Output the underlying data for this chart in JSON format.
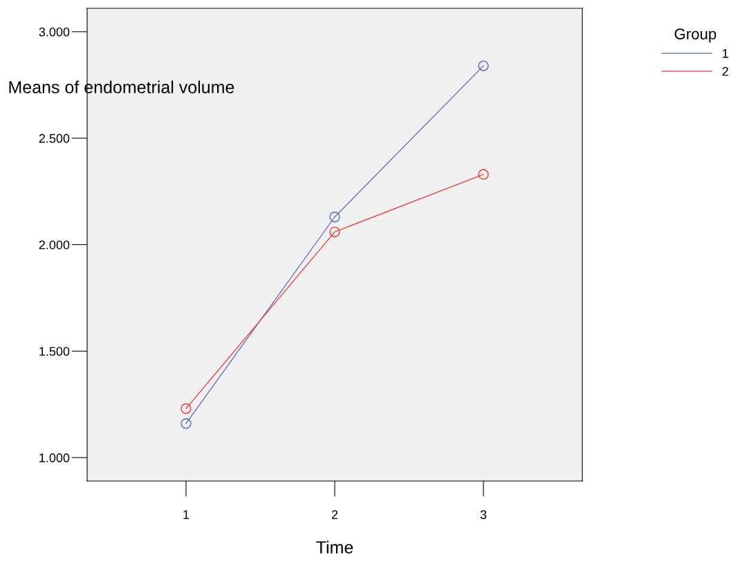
{
  "chart_data": {
    "type": "line",
    "xlabel": "Time",
    "ylabel": "Means of endometrial volume",
    "legend_title": "Group",
    "categories": [
      "1",
      "2",
      "3"
    ],
    "series": [
      {
        "name": "1",
        "color": "#5566bb",
        "values": [
          1.16,
          2.13,
          2.84
        ]
      },
      {
        "name": "2",
        "color": "#ee3333",
        "values": [
          1.23,
          2.06,
          2.33
        ]
      }
    ],
    "ylim": [
      0.89,
      3.11
    ],
    "yticks": [
      {
        "value": 1,
        "label": "1.000"
      },
      {
        "value": 1.5,
        "label": "1.500"
      },
      {
        "value": 2,
        "label": "2.000"
      },
      {
        "value": 2.5,
        "label": "2.500"
      },
      {
        "value": 3,
        "label": "3.000"
      }
    ],
    "marker": "circle",
    "line_style": "solid",
    "grid": false,
    "legend": "top right"
  }
}
